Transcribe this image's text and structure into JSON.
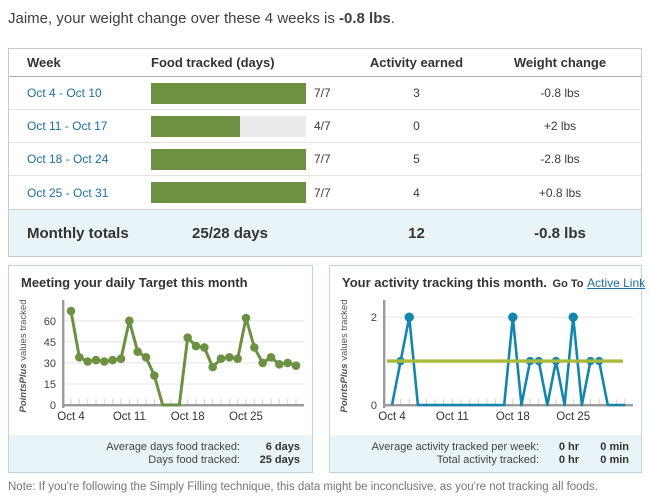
{
  "header": {
    "prefix": "Jaime, your weight change over these 4 weeks is ",
    "value": "-0.8 lbs",
    "suffix": "."
  },
  "table": {
    "columns": [
      "Week",
      "Food tracked (days)",
      "Activity earned",
      "Weight change"
    ],
    "rows": [
      {
        "week": "Oct 4 - Oct 10",
        "food_days": 7,
        "food_total": 7,
        "food_label": "7/7",
        "activity": "3",
        "weight": "-0.8 lbs"
      },
      {
        "week": "Oct 11 - Oct 17",
        "food_days": 4,
        "food_total": 7,
        "food_label": "4/7",
        "activity": "0",
        "weight": "+2 lbs"
      },
      {
        "week": "Oct 18 - Oct 24",
        "food_days": 7,
        "food_total": 7,
        "food_label": "7/7",
        "activity": "5",
        "weight": "-2.8 lbs"
      },
      {
        "week": "Oct 25 - Oct 31",
        "food_days": 7,
        "food_total": 7,
        "food_label": "7/7",
        "activity": "4",
        "weight": "+0.8 lbs"
      }
    ],
    "totals": {
      "label": "Monthly totals",
      "food": "25/28 days",
      "activity": "12",
      "weight": "-0.8 lbs"
    }
  },
  "chart_data": [
    {
      "type": "line",
      "title": "Meeting your daily Target this month",
      "ylabel_italic": "PointsPlus",
      "ylabel_rest": " values tracked",
      "x_range": "Oct 4 - Oct 31",
      "x_tick_labels": [
        "Oct 4",
        "Oct 11",
        "Oct 18",
        "Oct 25"
      ],
      "x_tick_indices": [
        0,
        7,
        14,
        21
      ],
      "y_ticks": [
        0,
        15,
        30,
        45,
        60
      ],
      "ylim": [
        0,
        72
      ],
      "grid": true,
      "line_color": "#6d9142",
      "values": [
        67,
        34,
        31,
        32,
        31,
        32,
        33,
        60,
        38,
        34,
        21,
        0,
        0,
        0,
        48,
        42,
        41,
        27,
        33,
        34,
        33,
        62,
        41,
        30,
        34,
        29,
        30,
        28
      ],
      "footer": [
        {
          "label": "Average days food tracked:",
          "value": "6 days"
        },
        {
          "label": "Days food tracked:",
          "value": "25 days"
        }
      ]
    },
    {
      "type": "line",
      "title": "Your activity tracking this month.",
      "title_goto": "Go To",
      "title_link": "Active Link",
      "ylabel_italic": "PointsPlus",
      "ylabel_rest": " values tracked",
      "x_range": "Oct 4 - Oct 31",
      "x_tick_labels": [
        "Oct 4",
        "Oct 11",
        "Oct 18",
        "Oct 25"
      ],
      "x_tick_indices": [
        0,
        7,
        14,
        21
      ],
      "y_ticks": [
        0,
        2
      ],
      "ylim": [
        0,
        2.3
      ],
      "grid": true,
      "line_color": "#1486ae",
      "reference_line": 1,
      "reference_color": "#a9ba3d",
      "values": [
        0,
        1,
        2,
        0,
        0,
        0,
        0,
        0,
        0,
        0,
        0,
        0,
        0,
        0,
        2,
        0,
        1,
        1,
        0,
        1,
        0,
        2,
        0,
        1,
        1,
        0,
        0,
        0
      ],
      "footer": [
        {
          "label": "Average activity tracked per week:",
          "value": "0 hr",
          "value2": "0 min"
        },
        {
          "label": "Total activity tracked:",
          "value": "0 hr",
          "value2": "0 min"
        }
      ]
    }
  ],
  "note": "Note: If you're following the Simply Filling technique, this data might be inconclusive, as you're not tracking all foods."
}
